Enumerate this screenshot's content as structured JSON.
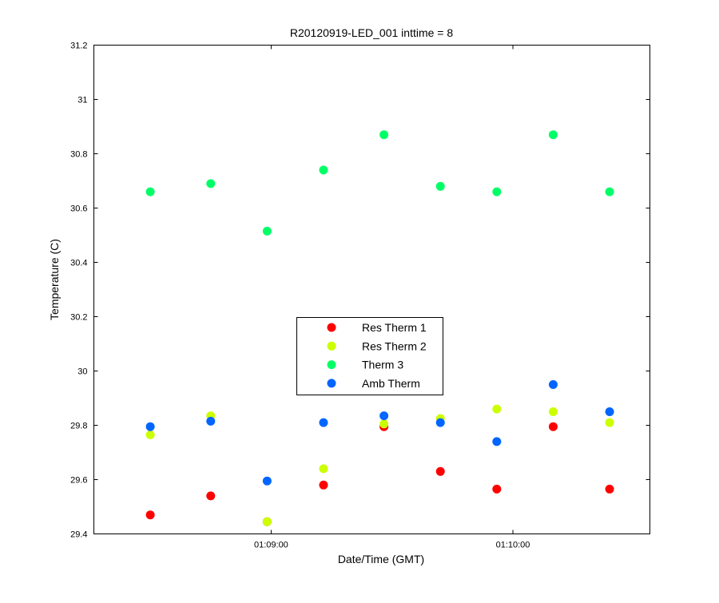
{
  "chart_data": {
    "type": "scatter",
    "title": "R20120919-LED_001 inttime = 8",
    "xlabel": "Date/Time (GMT)",
    "ylabel": "Temperature (C)",
    "xlim": [
      "01:08:16",
      "01:10:34"
    ],
    "ylim": [
      29.4,
      31.2
    ],
    "yticks": [
      29.4,
      29.6,
      29.8,
      30,
      30.2,
      30.4,
      30.6,
      30.8,
      31,
      31.2
    ],
    "ytick_labels": [
      "29.4",
      "29.6",
      "29.8",
      "30",
      "30.2",
      "30.4",
      "30.6",
      "30.8",
      "31",
      "31.2"
    ],
    "xticks": [
      "01:09:00",
      "01:10:00"
    ],
    "xtick_labels": [
      "01:09:00",
      "01:10:00"
    ],
    "grid": false,
    "legend_position": "center",
    "x": [
      "01:08:30",
      "01:08:45",
      "01:08:59",
      "01:09:13",
      "01:09:28",
      "01:09:42",
      "01:09:56",
      "01:10:10",
      "01:10:24"
    ],
    "series": [
      {
        "name": "Res Therm 1",
        "color": "#ff0000",
        "values": [
          29.47,
          29.54,
          29.445,
          29.58,
          29.795,
          29.63,
          29.565,
          29.795,
          29.565
        ]
      },
      {
        "name": "Res Therm 2",
        "color": "#ccff00",
        "values": [
          29.765,
          29.835,
          29.445,
          29.64,
          29.805,
          29.825,
          29.86,
          29.85,
          29.81
        ]
      },
      {
        "name": "Therm 3",
        "color": "#00ff66",
        "values": [
          30.66,
          30.69,
          30.515,
          30.74,
          30.87,
          30.68,
          30.66,
          30.87,
          30.66
        ]
      },
      {
        "name": "Amb Therm",
        "color": "#0066ff",
        "values": [
          29.795,
          29.815,
          29.595,
          29.81,
          29.835,
          29.81,
          29.74,
          29.95,
          29.85
        ]
      }
    ]
  }
}
